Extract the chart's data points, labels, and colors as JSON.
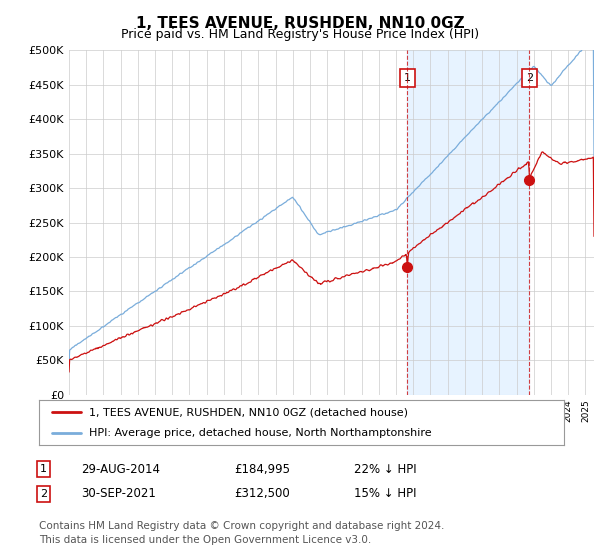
{
  "title": "1, TEES AVENUE, RUSHDEN, NN10 0GZ",
  "subtitle": "Price paid vs. HM Land Registry's House Price Index (HPI)",
  "ylabel_ticks": [
    "£0",
    "£50K",
    "£100K",
    "£150K",
    "£200K",
    "£250K",
    "£300K",
    "£350K",
    "£400K",
    "£450K",
    "£500K"
  ],
  "ytick_values": [
    0,
    50000,
    100000,
    150000,
    200000,
    250000,
    300000,
    350000,
    400000,
    450000,
    500000
  ],
  "ylim": [
    0,
    500000
  ],
  "hpi_color": "#7aaddb",
  "price_color": "#cc1111",
  "shade_color": "#ddeeff",
  "marker1_date": 2014.66,
  "marker1_value": 184995,
  "marker2_date": 2021.75,
  "marker2_value": 312500,
  "marker1_date_str": "29-AUG-2014",
  "marker1_price_str": "£184,995",
  "marker1_hpi_str": "22% ↓ HPI",
  "marker2_date_str": "30-SEP-2021",
  "marker2_price_str": "£312,500",
  "marker2_hpi_str": "15% ↓ HPI",
  "legend_line1": "1, TEES AVENUE, RUSHDEN, NN10 0GZ (detached house)",
  "legend_line2": "HPI: Average price, detached house, North Northamptonshire",
  "footer": "Contains HM Land Registry data © Crown copyright and database right 2024.\nThis data is licensed under the Open Government Licence v3.0.",
  "bg_color": "#ffffff",
  "plot_bg_color": "#ffffff",
  "grid_color": "#cccccc",
  "title_fontsize": 11,
  "subtitle_fontsize": 9,
  "tick_fontsize": 8,
  "legend_fontsize": 8,
  "footer_fontsize": 7.5
}
